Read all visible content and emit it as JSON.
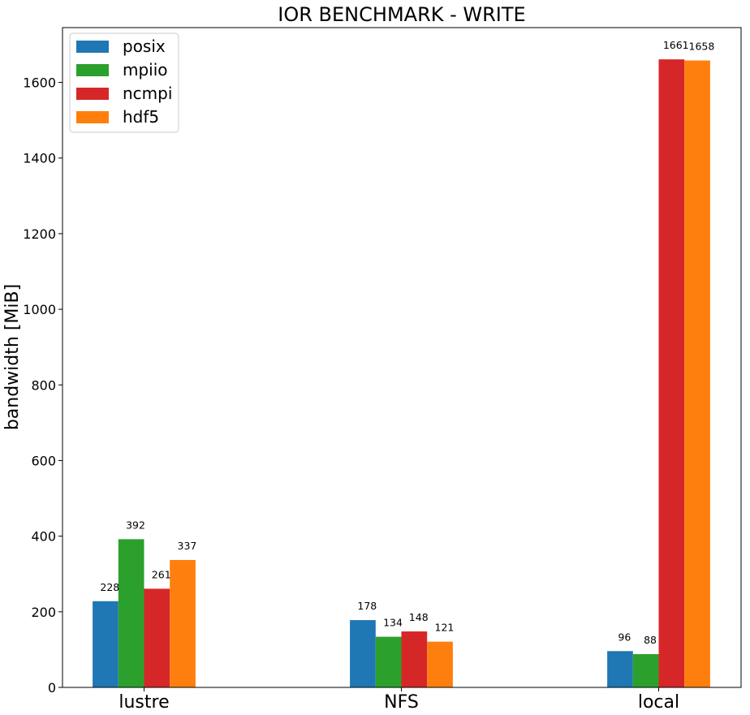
{
  "chart_data": {
    "type": "bar",
    "title": "IOR BENCHMARK - WRITE",
    "xlabel": "",
    "ylabel": "bandwidth [MiB]",
    "categories": [
      "lustre",
      "NFS",
      "local"
    ],
    "series": [
      {
        "name": "posix",
        "color": "#1f77b4",
        "values": [
          228,
          178,
          96
        ]
      },
      {
        "name": "mpiio",
        "color": "#2ca02c",
        "values": [
          392,
          134,
          88
        ]
      },
      {
        "name": "ncmpi",
        "color": "#d62728",
        "values": [
          261,
          148,
          1661
        ]
      },
      {
        "name": "hdf5",
        "color": "#ff7f0e",
        "values": [
          337,
          121,
          1658
        ]
      }
    ],
    "ylim": [
      0,
      1745
    ],
    "yticks": [
      0,
      200,
      400,
      600,
      800,
      1000,
      1200,
      1400,
      1600
    ],
    "grid": false,
    "legend_position": "top-left"
  }
}
